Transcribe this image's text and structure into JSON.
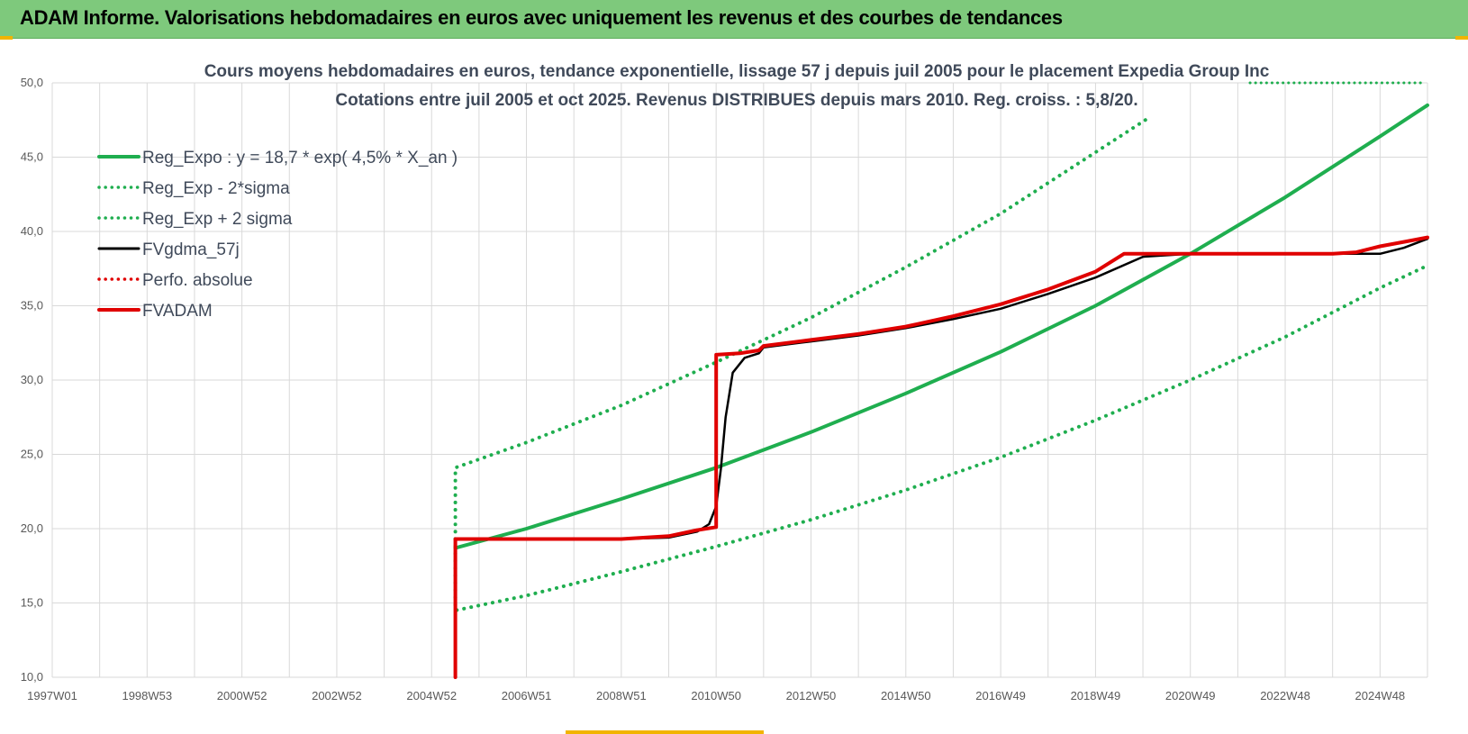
{
  "banner": {
    "title": "ADAM Informe. Valorisations hebdomadaires en euros avec uniquement les revenus et des courbes de tendances"
  },
  "colors": {
    "banner": "#7ec97c",
    "green": "#1fae4f",
    "black": "#000000",
    "red": "#e00000",
    "grid": "#d9d9d9"
  },
  "chart_data": {
    "type": "line",
    "title": "Cours moyens hebdomadaires en euros, tendance exponentielle, lissage 57 j depuis juil 2005 pour le placement Expedia Group Inc",
    "subtitle": "Cotations entre juil 2005 et oct 2025. Revenus DISTRIBUES depuis mars 2010. Reg. croiss. : 5,8/20.",
    "xlabel": "",
    "ylabel": "",
    "ylim": [
      10,
      50
    ],
    "yticks": [
      "10,0",
      "15,0",
      "20,0",
      "25,0",
      "30,0",
      "35,0",
      "40,0",
      "45,0",
      "50,0"
    ],
    "xlim": [
      1997.0,
      2026.0
    ],
    "xticks": [
      "1997W01",
      "1998W53",
      "2000W52",
      "2002W52",
      "2004W52",
      "2006W51",
      "2008W51",
      "2010W50",
      "2012W50",
      "2014W50",
      "2016W49",
      "2018W49",
      "2020W49",
      "2022W48",
      "2024W48"
    ],
    "grid": true,
    "legend_position": "top-left",
    "series": [
      {
        "name": "Reg_Expo : y = 18,7 * exp( 4,5% *  X_an )",
        "color": "#1fae4f",
        "style": "solid",
        "x": [
          2005.5,
          2007,
          2009,
          2011,
          2013,
          2015,
          2017,
          2019,
          2021,
          2023,
          2025,
          2026
        ],
        "y": [
          18.7,
          20.0,
          22.0,
          24.1,
          26.5,
          29.1,
          31.9,
          35.0,
          38.5,
          42.3,
          46.4,
          48.5
        ]
      },
      {
        "name": "Reg_Exp - 2*sigma",
        "color": "#1fae4f",
        "style": "dotted",
        "x": [
          2005.5,
          2005.5,
          2007,
          2009,
          2011,
          2013,
          2015,
          2017,
          2019,
          2021,
          2023,
          2025,
          2026
        ],
        "y": [
          19.3,
          14.5,
          15.5,
          17.1,
          18.8,
          20.6,
          22.6,
          24.8,
          27.3,
          30.0,
          32.9,
          36.2,
          37.7
        ]
      },
      {
        "name": "Reg_Exp + 2 sigma",
        "color": "#1fae4f",
        "style": "dotted",
        "x": [
          2005.5,
          2005.5,
          2007,
          2009,
          2011,
          2013,
          2015,
          2017,
          2018.5,
          2020.1
        ],
        "y": [
          19.3,
          24.1,
          25.8,
          28.3,
          31.2,
          34.2,
          37.6,
          41.2,
          44.3,
          47.6
        ]
      },
      {
        "name": "FVgdma_57j",
        "color": "#000000",
        "style": "solid",
        "x": [
          2005.5,
          2005.5,
          2009.0,
          2010.0,
          2010.6,
          2010.85,
          2011.0,
          2011.1,
          2011.2,
          2011.35,
          2011.6,
          2011.9,
          2012.0,
          2013.0,
          2014.0,
          2015.0,
          2016.0,
          2017.0,
          2018.0,
          2019.0,
          2020.0,
          2021.0,
          2022.0,
          2023.0,
          2024.0,
          2025.0,
          2025.5,
          2026.0
        ],
        "y": [
          10.0,
          19.3,
          19.3,
          19.4,
          19.8,
          20.3,
          21.5,
          24.0,
          27.5,
          30.5,
          31.5,
          31.8,
          32.2,
          32.6,
          33.0,
          33.5,
          34.1,
          34.8,
          35.8,
          36.9,
          38.3,
          38.5,
          38.5,
          38.5,
          38.5,
          38.5,
          38.9,
          39.5
        ]
      },
      {
        "name": "Perfo. absolue",
        "color": "#e00000",
        "style": "dotted",
        "x": [],
        "y": []
      },
      {
        "name": "FVADAM",
        "color": "#e00000",
        "style": "solid",
        "x": [
          2005.5,
          2005.5,
          2009.0,
          2010.0,
          2010.6,
          2011.0,
          2011.0,
          2011.5,
          2011.9,
          2012.0,
          2013.0,
          2014.0,
          2015.0,
          2016.0,
          2017.0,
          2018.0,
          2019.0,
          2019.6,
          2020.0,
          2021.0,
          2022.0,
          2023.0,
          2024.0,
          2024.0,
          2024.5,
          2025.0,
          2025.5,
          2026.0
        ],
        "y": [
          10.0,
          19.3,
          19.3,
          19.5,
          19.9,
          20.1,
          31.7,
          31.8,
          32.0,
          32.3,
          32.7,
          33.1,
          33.6,
          34.3,
          35.1,
          36.1,
          37.3,
          38.5,
          38.5,
          38.5,
          38.5,
          38.5,
          38.5,
          38.5,
          38.6,
          39.0,
          39.3,
          39.6
        ]
      }
    ]
  }
}
